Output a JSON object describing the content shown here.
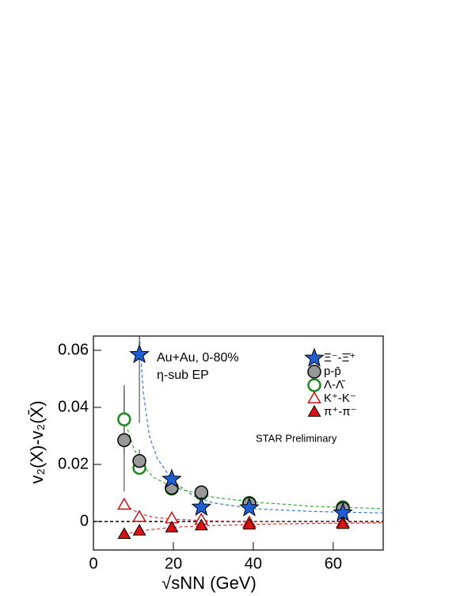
{
  "chart_data": {
    "type": "scatter",
    "xlabel": "√sNN  (GeV)",
    "ylabel": "v₂(X)-v₂(X̄)",
    "annotations": [
      "Au+Au,  0-80%",
      "η-sub EP",
      "STAR Preliminary"
    ],
    "xlim": [
      0,
      72.5
    ],
    "ylim": [
      -0.01,
      0.065
    ],
    "xticks": [
      0,
      20,
      40,
      60
    ],
    "yticks": [
      0,
      0.02,
      0.04,
      0.06
    ],
    "hline": 0,
    "series": [
      {
        "name": "Ξ⁻-Ξ̄⁺",
        "color": "#1f5fd6",
        "marker": "star",
        "x": [
          11.5,
          19.6,
          27,
          39,
          62.4
        ],
        "values": [
          0.0585,
          0.0148,
          0.005,
          0.0048,
          0.003
        ],
        "errors": [
          0.024,
          null,
          null,
          null,
          null
        ]
      },
      {
        "name": "p-p̄",
        "color": "#999999",
        "marker": "circle",
        "x": [
          7.7,
          11.5,
          19.6,
          27,
          39,
          62.4
        ],
        "values": [
          0.0285,
          0.0212,
          0.0118,
          0.0102,
          0.0063,
          0.0045
        ],
        "errors": [
          0.018,
          0.004,
          null,
          null,
          null,
          null
        ]
      },
      {
        "name": "Λ-Λ̄",
        "color": "#1a8a1a",
        "marker": "open-circle",
        "x": [
          7.7,
          11.5,
          19.6,
          27,
          39,
          62.4
        ],
        "values": [
          0.0358,
          0.0188,
          0.0115,
          0.0098,
          0.0065,
          0.005
        ],
        "errors": [
          0.012,
          null,
          null,
          null,
          null,
          null
        ]
      },
      {
        "name": "K⁺-K⁻",
        "color": "#cc1111",
        "marker": "open-triangle",
        "x": [
          7.7,
          11.5,
          19.6,
          27,
          39,
          62.4
        ],
        "values": [
          0.0058,
          0.0015,
          0.001,
          0.0005,
          -0.0005,
          -0.0005
        ],
        "errors": [
          null,
          null,
          null,
          null,
          null,
          null
        ]
      },
      {
        "name": "π⁺-π⁻",
        "color": "#dd1111",
        "marker": "triangle",
        "x": [
          7.7,
          11.5,
          19.6,
          27,
          39,
          62.4
        ],
        "values": [
          -0.0045,
          -0.0033,
          -0.0022,
          -0.0015,
          -0.0012,
          -0.001
        ],
        "errors": [
          null,
          null,
          null,
          null,
          null,
          null
        ]
      }
    ],
    "fits": [
      {
        "color": "#3377dd",
        "x": [
          11.5,
          12.5,
          14,
          16,
          20,
          25,
          30,
          40,
          55,
          72.5
        ],
        "values": [
          0.065,
          0.045,
          0.03,
          0.022,
          0.014,
          0.009,
          0.0065,
          0.0045,
          0.0035,
          0.003
        ]
      },
      {
        "color": "#33aa33",
        "x": [
          7.7,
          10,
          12,
          15,
          20,
          30,
          40,
          55,
          72.5
        ],
        "values": [
          0.036,
          0.026,
          0.02,
          0.0155,
          0.012,
          0.0085,
          0.0068,
          0.0053,
          0.0045
        ]
      },
      {
        "color": "#dd3333",
        "x": [
          7.7,
          11.5,
          15,
          20,
          30,
          45,
          72.5
        ],
        "values": [
          0.0058,
          0.0028,
          0.0015,
          0.0008,
          0.0002,
          -0.0001,
          -0.0002
        ]
      },
      {
        "color": "#dd3333",
        "x": [
          7.7,
          11.5,
          20,
          30,
          40,
          55,
          72.5
        ],
        "values": [
          -0.0045,
          -0.0033,
          -0.002,
          -0.0014,
          -0.001,
          -0.0007,
          -0.0005
        ]
      }
    ]
  }
}
